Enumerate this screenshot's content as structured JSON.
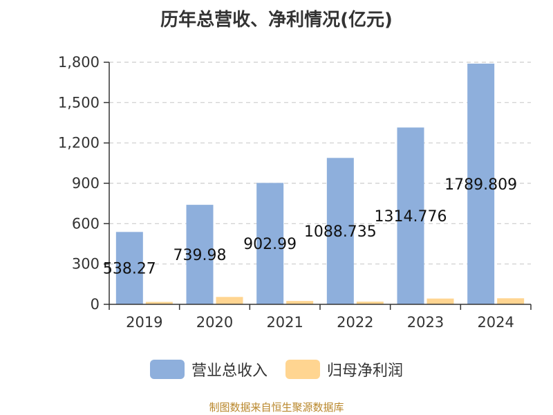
{
  "colors": {
    "revenue": "#8eafdc",
    "profit": "#ffd591",
    "axis": "#333333",
    "grid": "#cccccc",
    "text": "#333333",
    "source": "#b8862a"
  },
  "legend": {
    "revenue_label": "营业总收入",
    "profit_label": "归母净利润"
  },
  "source_text": "制图数据来自恒生聚源数据库",
  "chart_data": {
    "type": "bar",
    "title": "历年总营收、净利情况(亿元)",
    "categories": [
      "2019",
      "2020",
      "2021",
      "2022",
      "2023",
      "2024"
    ],
    "series": [
      {
        "name": "营业总收入",
        "values": [
          538.27,
          739.98,
          902.99,
          1088.735,
          1314.776,
          1789.809
        ],
        "data_labels": [
          "538.27",
          "739.98",
          "902.99",
          "1088.735",
          "1314.776",
          "1789.809"
        ]
      },
      {
        "name": "归母净利润",
        "values": [
          18,
          55,
          25,
          20,
          43,
          45
        ]
      }
    ],
    "ylim": [
      0,
      1800
    ],
    "yticks": [
      0,
      300,
      600,
      900,
      1200,
      1500,
      1800
    ],
    "ytick_labels": [
      "0",
      "300",
      "600",
      "900",
      "1,200",
      "1,500",
      "1,800"
    ],
    "grid": true,
    "legend_position": "bottom"
  }
}
